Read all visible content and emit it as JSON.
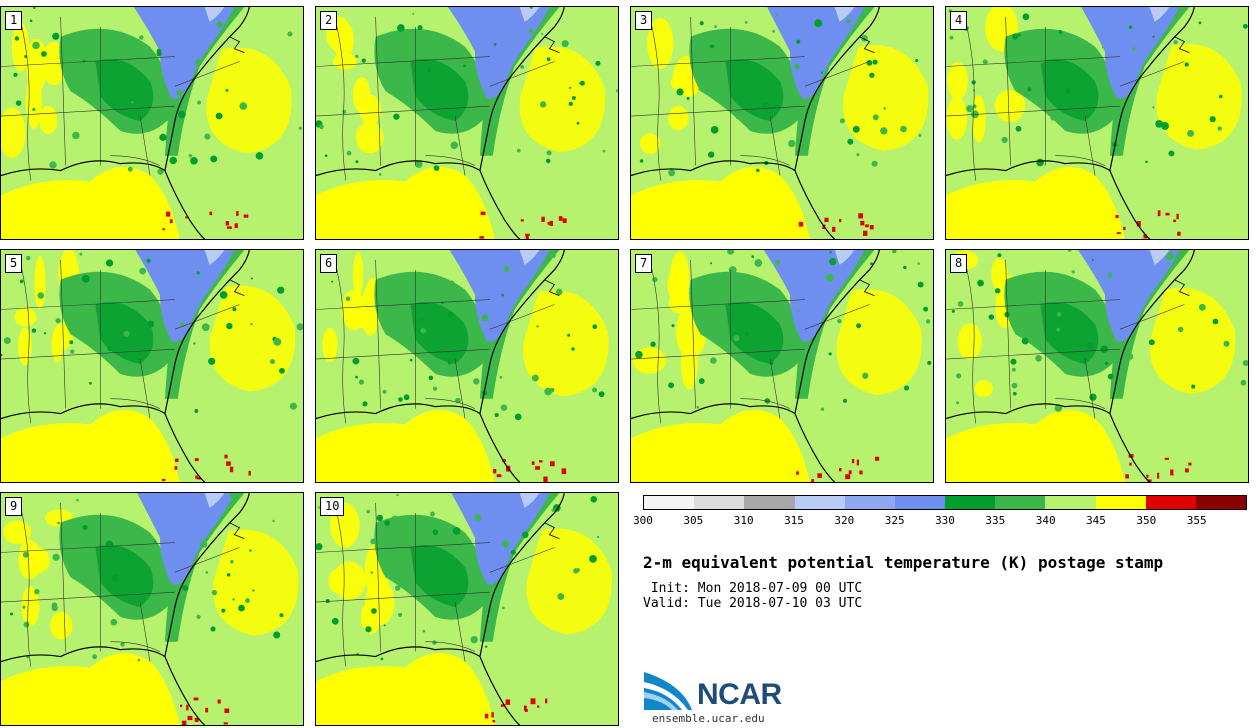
{
  "panels": [
    "1",
    "2",
    "3",
    "4",
    "5",
    "6",
    "7",
    "8",
    "9",
    "10"
  ],
  "colors": {
    "c300": "#f4f4f4",
    "c305": "#dcdcdc",
    "c310": "#a8a8a8",
    "c315": "#b8ccf5",
    "c320": "#90a8f2",
    "c325": "#6f8ff0",
    "c330": "#009e2c",
    "c335": "#3cb84a",
    "c340": "#b6f26d",
    "c345": "#ffff00",
    "c350": "#e00000",
    "c355": "#8b0000"
  },
  "colorbar": {
    "ticks": [
      "300",
      "305",
      "310",
      "315",
      "320",
      "325",
      "330",
      "335",
      "340",
      "345",
      "350",
      "355"
    ],
    "colors": [
      "#f4f4f4",
      "#dcdcdc",
      "#a8a8a8",
      "#b8ccf5",
      "#90a8f2",
      "#6f8ff0",
      "#009e2c",
      "#3cb84a",
      "#b6f26d",
      "#ffff00",
      "#e00000",
      "#8b0000"
    ]
  },
  "title": "2-m equivalent potential temperature (K) postage stamp",
  "init": " Init: Mon 2018-07-09 00 UTC",
  "valid": "Valid: Tue 2018-07-10 03 UTC",
  "logo": {
    "name": "NCAR",
    "url": "ensemble.ucar.edu"
  }
}
